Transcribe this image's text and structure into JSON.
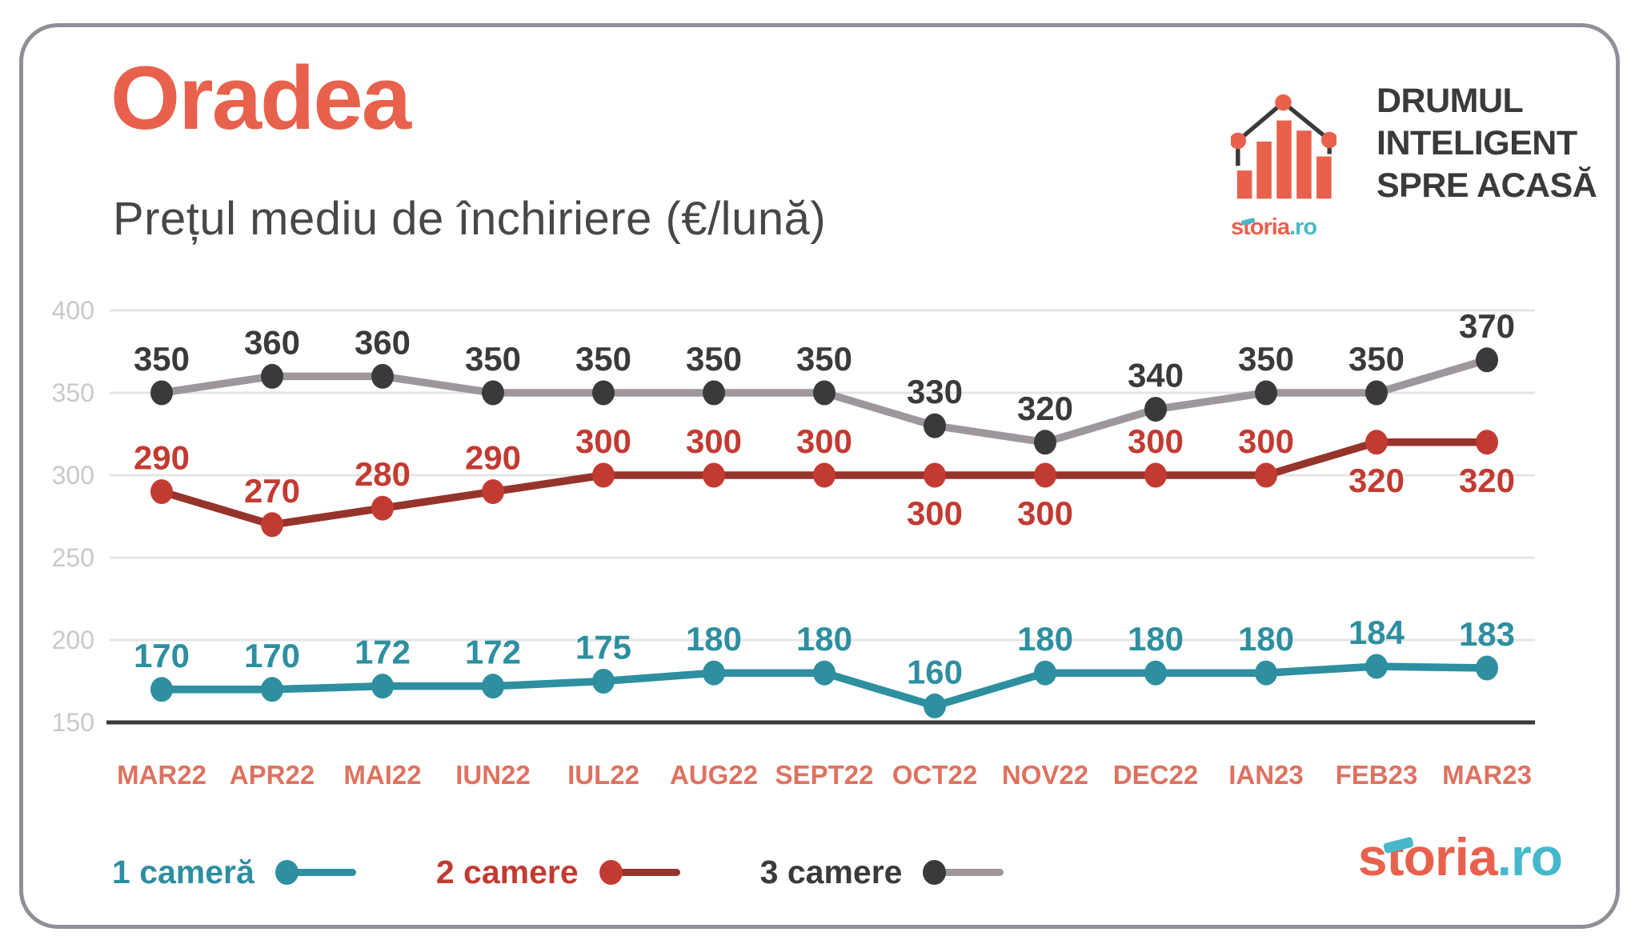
{
  "page": {
    "title": "Oradea",
    "subtitle": "Prețul mediu de închiriere (€/lună)"
  },
  "brand": {
    "tagline_lines": [
      "DRUMUL",
      "INTELIGENT",
      "SPRE ACASĂ"
    ],
    "logo_text": "storia",
    "logo_tld": ".ro"
  },
  "colors": {
    "coral": "#E8614D",
    "coral_light": "#DD7260",
    "teal": "#2D8FA0",
    "teal_bright": "#45B9CB",
    "red": "#C23B32",
    "red_dark": "#96342B",
    "dark": "#3A3A3C",
    "gray_line": "#9D979D",
    "grid": "#E6E4E4",
    "tick": "#C9C9C9",
    "subtitle": "#474747",
    "border": "#8F8F97"
  },
  "chart_data": {
    "type": "line",
    "title": "Prețul mediu de închiriere (€/lună)",
    "xlabel": "",
    "ylabel": "€/lună",
    "ylim": [
      150,
      400
    ],
    "y_ticks": [
      400,
      350,
      300,
      250,
      200,
      150
    ],
    "grid": true,
    "legend_position": "bottom",
    "categories": [
      "MAR22",
      "APR22",
      "MAI22",
      "IUN22",
      "IUL22",
      "AUG22",
      "SEPT22",
      "OCT22",
      "NOV22",
      "DEC22",
      "IAN23",
      "FEB23",
      "MAR23"
    ],
    "series": [
      {
        "name": "1 cameră",
        "values": [
          170,
          170,
          172,
          172,
          175,
          180,
          180,
          160,
          180,
          180,
          180,
          184,
          183
        ],
        "line_color": "#2D8FA0",
        "dot_color": "#2D8FA0",
        "label_color": "#2D8FA0",
        "labels_below": []
      },
      {
        "name": "2 camere",
        "values": [
          290,
          270,
          280,
          290,
          300,
          300,
          300,
          300,
          300,
          300,
          300,
          320,
          320
        ],
        "line_color": "#96342B",
        "dot_color": "#C23B32",
        "label_color": "#C23B32",
        "labels_below": [
          7,
          8,
          11,
          12
        ]
      },
      {
        "name": "3 camere",
        "values": [
          350,
          360,
          360,
          350,
          350,
          350,
          350,
          330,
          320,
          340,
          350,
          350,
          370
        ],
        "line_color": "#9D979D",
        "dot_color": "#3A3A3C",
        "label_color": "#3A3A3C",
        "labels_below": []
      }
    ]
  }
}
